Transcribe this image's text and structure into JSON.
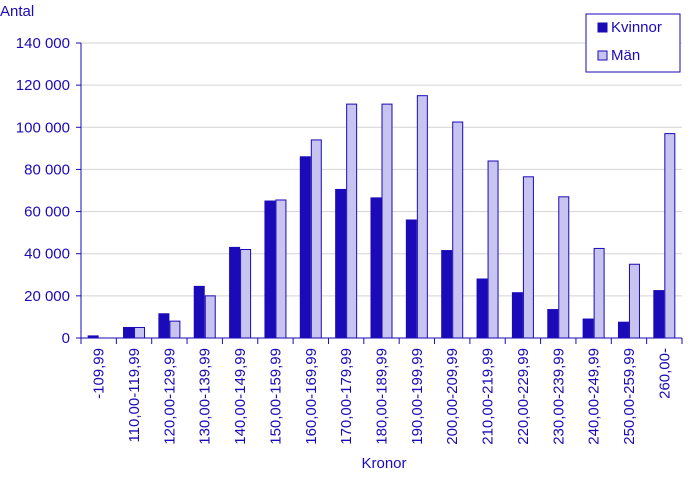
{
  "chart_data": {
    "type": "bar",
    "ylabel": "Antal",
    "xlabel": "Kronor",
    "ylim": [
      0,
      140000
    ],
    "yticks": [
      0,
      20000,
      40000,
      60000,
      80000,
      100000,
      120000,
      140000
    ],
    "ytick_labels": [
      "0",
      "20 000",
      "40 000",
      "60 000",
      "80 000",
      "100 000",
      "120 000",
      "140 000"
    ],
    "grid": true,
    "legend_position": "top-right",
    "categories": [
      "-109,99",
      "110,00-119,99",
      "120,00-129,99",
      "130,00-139,99",
      "140,00-149,99",
      "150,00-159,99",
      "160,00-169,99",
      "170,00-179,99",
      "180,00-189,99",
      "190,00-199,99",
      "200,00-209,99",
      "210,00-219,99",
      "220,00-229,99",
      "230,00-239,99",
      "240,00-249,99",
      "250,00-259,99",
      "260,00-"
    ],
    "series": [
      {
        "name": "Kvinnor",
        "color": "#1a0ab8",
        "values": [
          1000,
          5000,
          11500,
          24500,
          43000,
          65000,
          86000,
          70500,
          66500,
          56000,
          41500,
          28000,
          21500,
          13500,
          9000,
          7500,
          22500
        ]
      },
      {
        "name": "Män",
        "color": "#c8c4f0",
        "values": [
          0,
          5000,
          8000,
          20000,
          42000,
          65500,
          94000,
          111000,
          111000,
          115000,
          102500,
          84000,
          76500,
          67000,
          42500,
          35000,
          97000
        ]
      }
    ]
  }
}
